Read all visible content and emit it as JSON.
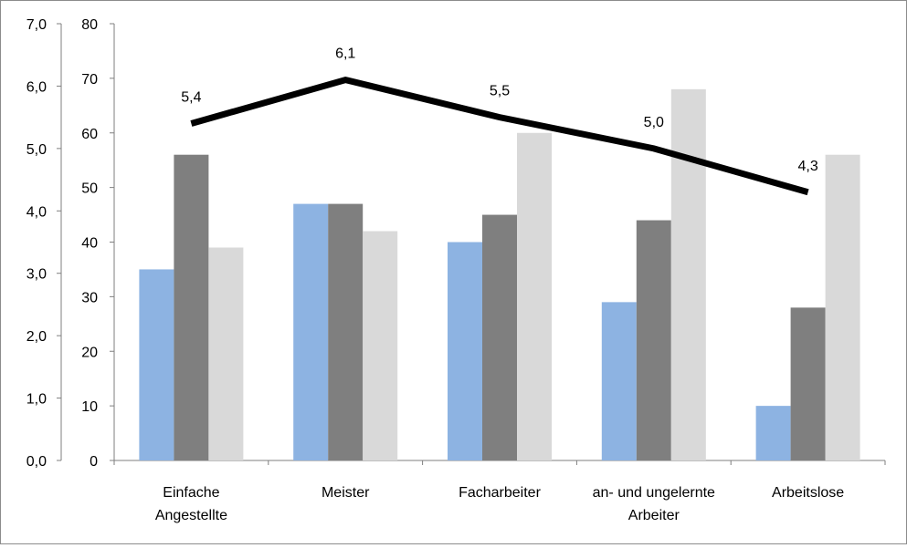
{
  "chart_data": {
    "type": "bar",
    "categories": [
      [
        "Einfache",
        "Angestellte"
      ],
      [
        "Meister"
      ],
      [
        "Facharbeiter"
      ],
      [
        "an- und ungelernte",
        "Arbeiter"
      ],
      [
        "Arbeitslose"
      ]
    ],
    "left_axis": {
      "min": 0,
      "max": 7,
      "step": 1,
      "tick_labels": [
        "0,0",
        "1,0",
        "2,0",
        "3,0",
        "4,0",
        "5,0",
        "6,0",
        "7,0"
      ]
    },
    "right_axis": {
      "min": 0,
      "max": 80,
      "step": 10,
      "tick_labels": [
        "0",
        "10",
        "20",
        "30",
        "40",
        "50",
        "60",
        "70",
        "80"
      ]
    },
    "grid": false,
    "legend": "none",
    "bar_series": [
      {
        "axis": "right",
        "color": "#8db3e2",
        "values": [
          35,
          47,
          40,
          29,
          10
        ]
      },
      {
        "axis": "right",
        "color": "#7f7f7f",
        "values": [
          56,
          47,
          45,
          44,
          28
        ]
      },
      {
        "axis": "right",
        "color": "#d9d9d9",
        "values": [
          39,
          42,
          60,
          68,
          56
        ]
      }
    ],
    "line_series": {
      "axis": "left",
      "color": "#000000",
      "values": [
        5.4,
        6.1,
        5.5,
        5.0,
        4.3
      ],
      "data_labels": [
        "5,4",
        "6,1",
        "5,5",
        "5,0",
        "4,3"
      ]
    }
  }
}
